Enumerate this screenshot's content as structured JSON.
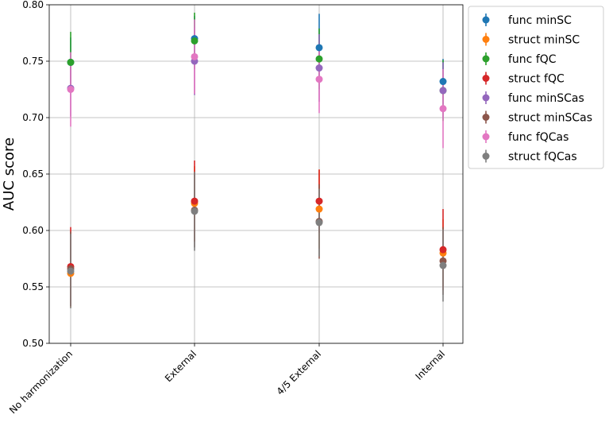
{
  "chart_data": {
    "type": "scatter",
    "subtype": "errorbar",
    "title": "",
    "xlabel": "",
    "ylabel": "AUC score",
    "ylim": [
      0.5,
      0.8
    ],
    "yticks": [
      "0.50",
      "0.55",
      "0.60",
      "0.65",
      "0.70",
      "0.75",
      "0.80"
    ],
    "categories": [
      "No harmonization",
      "External",
      "4/5 External",
      "Internal"
    ],
    "grid": true,
    "legend_position": "outside-right-top",
    "series": [
      {
        "name": "func minSC",
        "color": "#1f77b4",
        "values": [
          0.749,
          0.77,
          0.762,
          0.732
        ],
        "err": [
          0.022,
          0.02,
          0.03,
          0.02
        ]
      },
      {
        "name": "struct minSC",
        "color": "#ff7f0e",
        "values": [
          0.562,
          0.624,
          0.619,
          0.58
        ],
        "err": [
          0.03,
          0.033,
          0.035,
          0.03
        ]
      },
      {
        "name": "func fQC",
        "color": "#2ca02c",
        "values": [
          0.749,
          0.768,
          0.752,
          0.724
        ],
        "err": [
          0.027,
          0.025,
          0.027,
          0.027
        ]
      },
      {
        "name": "struct fQC",
        "color": "#d62728",
        "values": [
          0.568,
          0.626,
          0.626,
          0.583
        ],
        "err": [
          0.035,
          0.036,
          0.028,
          0.036
        ]
      },
      {
        "name": "func minSCas",
        "color": "#9467bd",
        "values": [
          0.726,
          0.75,
          0.744,
          0.724
        ],
        "err": [
          0.025,
          0.03,
          0.03,
          0.025
        ]
      },
      {
        "name": "struct minSCas",
        "color": "#8c564b",
        "values": [
          0.566,
          0.618,
          0.608,
          0.573
        ],
        "err": [
          0.033,
          0.033,
          0.033,
          0.03
        ]
      },
      {
        "name": "func fQCas",
        "color": "#e377c2",
        "values": [
          0.725,
          0.754,
          0.734,
          0.708
        ],
        "err": [
          0.033,
          0.033,
          0.03,
          0.035
        ]
      },
      {
        "name": "struct fQCas",
        "color": "#7f7f7f",
        "values": [
          0.564,
          0.617,
          0.607,
          0.569
        ],
        "err": [
          0.033,
          0.035,
          0.03,
          0.032
        ]
      }
    ]
  }
}
